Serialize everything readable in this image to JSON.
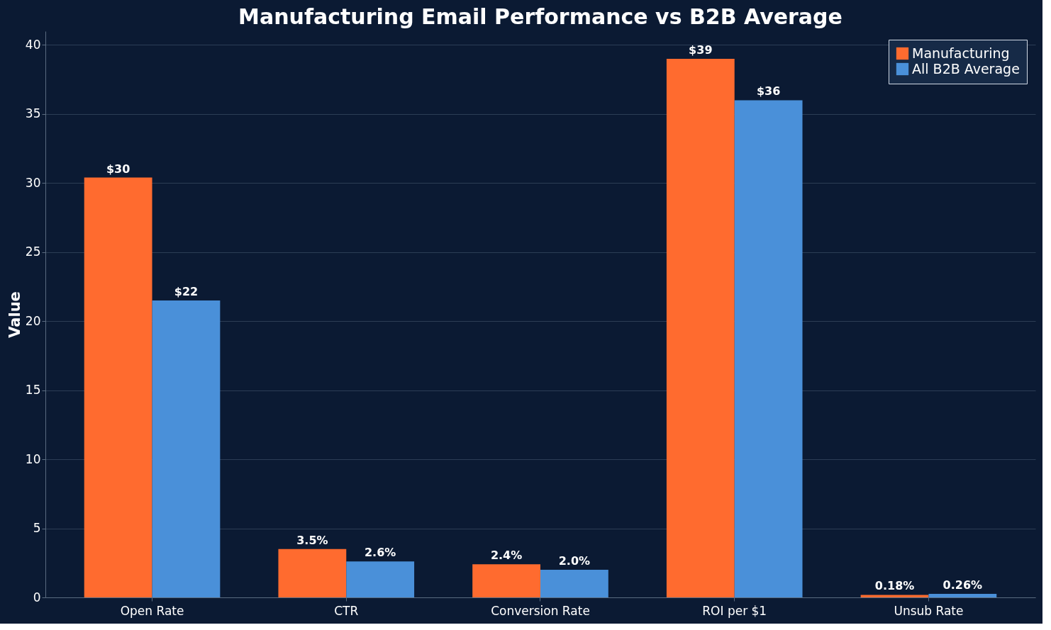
{
  "chart_data": {
    "type": "bar",
    "title": "Manufacturing Email Performance vs B2B Average",
    "ylabel": "Value",
    "categories": [
      "Open Rate",
      "CTR",
      "Conversion Rate",
      "ROI per $1",
      "Unsub Rate"
    ],
    "series": [
      {
        "name": "Manufacturing",
        "color": "#ff6b2f",
        "values": [
          30.4,
          3.5,
          2.4,
          39,
          0.18
        ],
        "value_labels": [
          "$30",
          "3.5%",
          "2.4%",
          "$39",
          "0.18%"
        ]
      },
      {
        "name": "All B2B Average",
        "color": "#4a90d9",
        "values": [
          21.5,
          2.6,
          2.0,
          36,
          0.26
        ],
        "value_labels": [
          "$22",
          "2.6%",
          "2.0%",
          "$36",
          "0.26%"
        ]
      }
    ],
    "ylim": [
      0,
      41
    ],
    "yticks": [
      0,
      5,
      10,
      15,
      20,
      25,
      30,
      35,
      40
    ],
    "grid": "y",
    "legend": "top right"
  }
}
